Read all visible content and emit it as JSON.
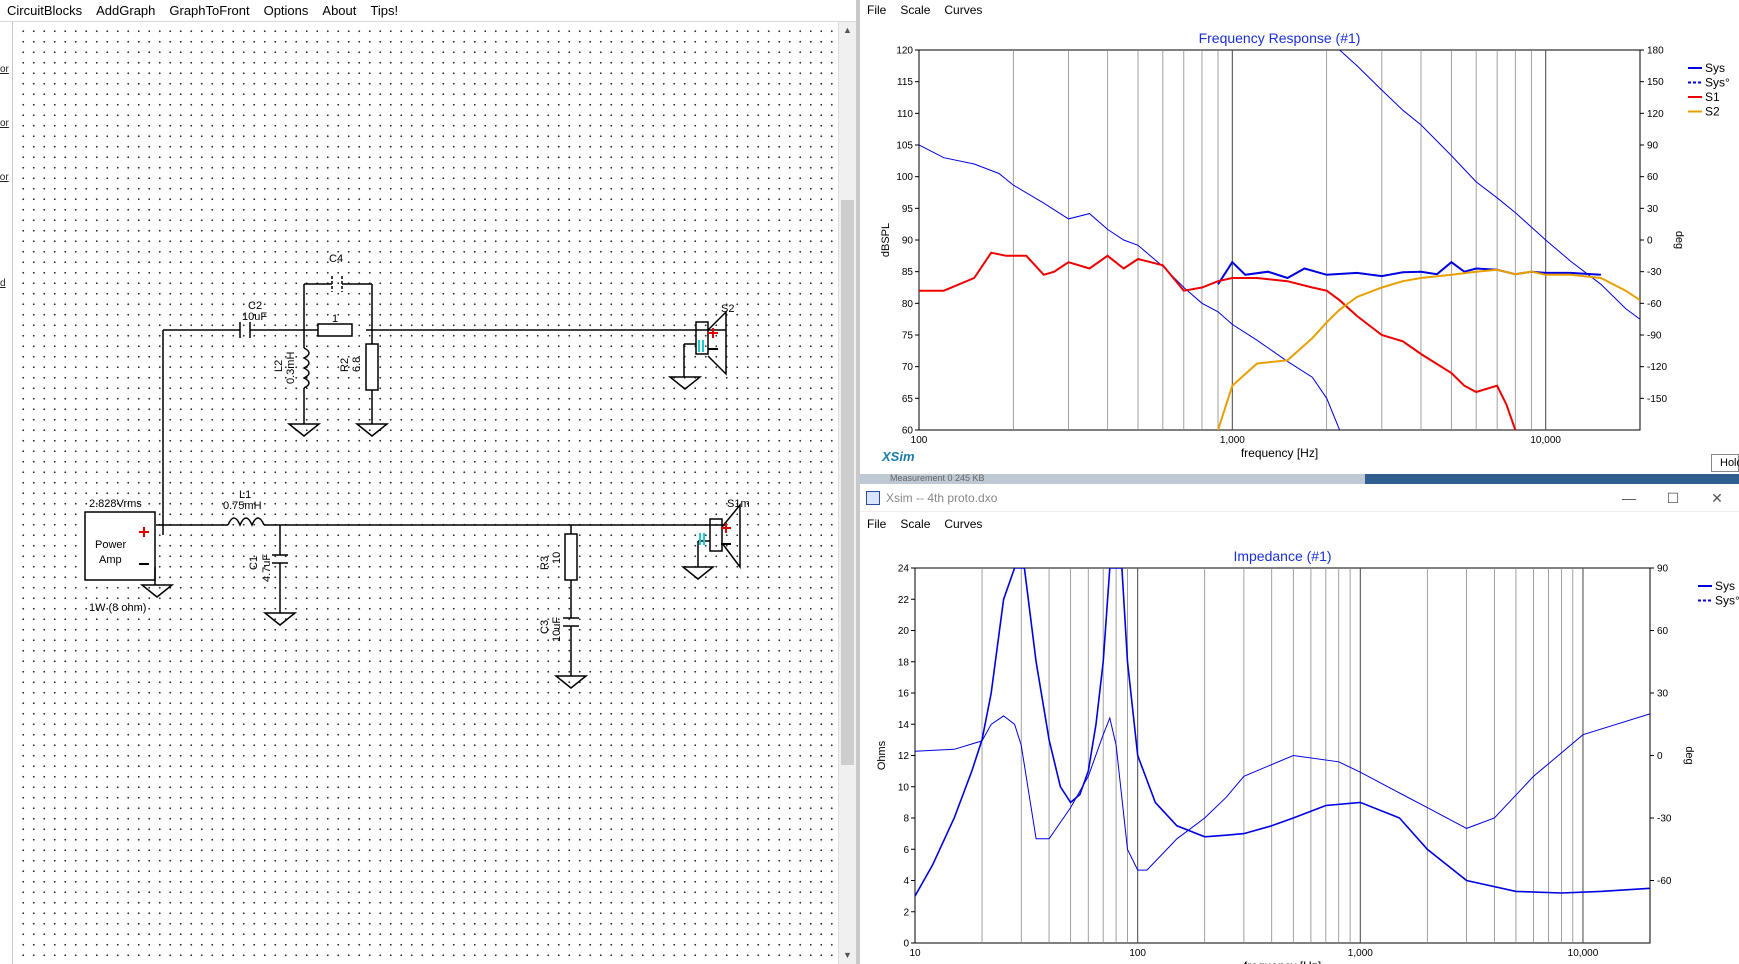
{
  "app_menu": [
    "CircuitBlocks",
    "AddGraph",
    "GraphToFront",
    "Options",
    "About",
    "Tips!"
  ],
  "sidebar_fragments": [
    "or",
    "or",
    "tor",
    "d"
  ],
  "schematic": {
    "components": {
      "C2": {
        "name": "C2",
        "value": "10uF"
      },
      "C4": {
        "name": "C4",
        "value": ""
      },
      "R_series": {
        "name": "",
        "value": "1"
      },
      "L2": {
        "name": "L2",
        "value": "0.3mH"
      },
      "R2": {
        "name": "R2",
        "value": "6.8"
      },
      "S2": {
        "name": "S2"
      },
      "L1": {
        "name": "L1",
        "value": "0.75mH"
      },
      "C1": {
        "name": "C1",
        "value": "4.7uF"
      },
      "R3": {
        "name": "R3",
        "value": "10"
      },
      "C3": {
        "name": "C3",
        "value": "10uF"
      },
      "S1m": {
        "name": "S1m"
      },
      "amp": {
        "voltage": "2.828Vrms",
        "label_line1": "Power",
        "label_line2": "Amp",
        "power": "1W (8 ohm)"
      }
    }
  },
  "freq_window": {
    "menu": [
      "File",
      "Scale",
      "Curves"
    ],
    "brand": "XSim",
    "hold_label": "Hold"
  },
  "mid_strip_text": "Measurement   0 245 KB",
  "imp_window": {
    "title": "Xsim -- 4th proto.dxo",
    "menu": [
      "File",
      "Scale",
      "Curves"
    ],
    "buttons": {
      "minimize": "—",
      "maximize": "☐",
      "close": "✕"
    }
  },
  "chart_data": [
    {
      "type": "line",
      "title": "Frequency Response (#1)",
      "xlabel": "frequency [Hz]",
      "ylabel": "dBSPL",
      "y2label": "deg",
      "xscale": "log",
      "xlim": [
        100,
        20000
      ],
      "ylim": [
        60,
        120
      ],
      "y2lim": [
        -180,
        180
      ],
      "x_ticks": [
        "100",
        "1,000",
        "10,000"
      ],
      "y_ticks": [
        "60",
        "65",
        "70",
        "75",
        "80",
        "85",
        "90",
        "95",
        "100",
        "105",
        "110",
        "115",
        "120"
      ],
      "y2_ticks": [
        "-150",
        "-120",
        "-90",
        "-60",
        "-30",
        "0",
        "30",
        "60",
        "90",
        "120",
        "150",
        "180"
      ],
      "legend": {
        "placement": "right",
        "entries": [
          "Sys",
          "Sys°",
          "S1",
          "S2"
        ]
      },
      "grid": true,
      "colors": {
        "Sys": "#0000e0",
        "S1": "#ee0000",
        "S2": "#e8a000"
      },
      "series": [
        {
          "name": "Sys",
          "axis": "left",
          "style": "solid",
          "x": [
            900,
            1000,
            1100,
            1300,
            1500,
            1700,
            2000,
            2500,
            3000,
            3500,
            4000,
            4500,
            5000,
            5500,
            6000,
            7000,
            8000,
            9000,
            10000,
            12000,
            15000
          ],
          "values": [
            83,
            86.5,
            84.5,
            85,
            84,
            85.5,
            84.5,
            84.8,
            84.3,
            84.9,
            85,
            84.6,
            86.5,
            85,
            85.5,
            85.3,
            84.6,
            85,
            84.8,
            84.8,
            84.5
          ]
        },
        {
          "name": "Sys°",
          "axis": "right",
          "style": "dashed",
          "x": [
            100,
            120,
            150,
            180,
            200,
            250,
            300,
            350,
            400,
            450,
            500,
            600,
            700,
            800,
            900,
            1000,
            1200,
            1500,
            1800,
            2000,
            2200
          ],
          "values": [
            90,
            78,
            72,
            63,
            52,
            35,
            20,
            25,
            10,
            0,
            -5,
            -25,
            -45,
            -60,
            -68,
            -80,
            -95,
            -115,
            -130,
            -150,
            -180
          ]
        },
        {
          "name": "Sys°",
          "axis": "right",
          "style": "dashed",
          "x": [
            2200,
            2500,
            3000,
            3500,
            4000,
            5000,
            6000,
            7000,
            8000,
            10000,
            12000,
            15000,
            18000,
            20000
          ],
          "values": [
            180,
            165,
            142,
            123,
            109,
            80,
            55,
            40,
            26,
            0,
            -20,
            -42,
            -65,
            -75
          ]
        },
        {
          "name": "S1",
          "axis": "left",
          "style": "solid",
          "x": [
            100,
            120,
            150,
            170,
            190,
            220,
            250,
            270,
            300,
            350,
            400,
            450,
            500,
            600,
            700,
            800,
            900,
            1000,
            1200,
            1500,
            1800,
            2000,
            2200,
            2500,
            3000,
            3500,
            4000,
            5000,
            5500,
            6000,
            7000,
            7500,
            8000
          ],
          "values": [
            82,
            82,
            84,
            88,
            87.5,
            87.5,
            84.5,
            85,
            86.5,
            85.5,
            87.5,
            85.5,
            87,
            86,
            82,
            82.5,
            83.5,
            84,
            84,
            83.5,
            82.5,
            82,
            80.5,
            78,
            75,
            74,
            72,
            69,
            67,
            66,
            67,
            64,
            60
          ]
        },
        {
          "name": "S2",
          "axis": "left",
          "style": "solid",
          "x": [
            900,
            1000,
            1200,
            1500,
            1800,
            2000,
            2200,
            2500,
            3000,
            3500,
            4000,
            5000,
            6000,
            7000,
            8000,
            9000,
            10000,
            12000,
            15000,
            18000,
            20000
          ],
          "values": [
            60,
            67,
            70.5,
            71,
            74.5,
            77,
            79,
            81,
            82.5,
            83.5,
            84,
            84.5,
            85,
            85.3,
            84.6,
            85,
            84.5,
            84.5,
            84,
            82,
            80.5
          ]
        }
      ]
    },
    {
      "type": "line",
      "title": "Impedance (#1)",
      "xlabel": "frequency [Hz]",
      "ylabel": "Ohms",
      "y2label": "deg",
      "xscale": "log",
      "xlim": [
        10,
        20000
      ],
      "ylim": [
        0,
        24
      ],
      "y2lim": [
        -90,
        90
      ],
      "x_ticks": [
        "10",
        "100",
        "1,000",
        "10,000"
      ],
      "y_ticks": [
        "0",
        "2",
        "4",
        "6",
        "8",
        "10",
        "12",
        "14",
        "16",
        "18",
        "20",
        "22",
        "24"
      ],
      "y2_ticks": [
        "-60",
        "-30",
        "0",
        "30",
        "60",
        "90"
      ],
      "legend": {
        "placement": "right",
        "entries": [
          "Sys",
          "Sys°"
        ]
      },
      "grid": true,
      "colors": {
        "Sys": "#0000e0"
      },
      "series": [
        {
          "name": "Sys",
          "axis": "left",
          "style": "solid",
          "x": [
            10,
            12,
            15,
            18,
            20,
            22,
            25,
            28,
            31,
            35,
            40,
            45,
            50,
            55,
            60,
            65,
            70,
            75,
            80,
            85,
            90,
            100,
            120,
            150,
            200,
            250,
            300,
            400,
            500,
            700,
            1000,
            1500,
            2000,
            3000,
            5000,
            8000,
            12000,
            20000
          ],
          "values": [
            3,
            5,
            8,
            11,
            13,
            16,
            22,
            24,
            24,
            18,
            13,
            10,
            9,
            9.5,
            11,
            14,
            18,
            24,
            24,
            24,
            18,
            12,
            9,
            7.5,
            6.8,
            6.9,
            7,
            7.5,
            8,
            8.8,
            9,
            8,
            6,
            4,
            3.3,
            3.2,
            3.3,
            3.5
          ]
        },
        {
          "name": "Sys°",
          "axis": "right",
          "style": "dashed",
          "x": [
            10,
            15,
            20,
            22,
            25,
            28,
            30,
            35,
            40,
            50,
            60,
            70,
            75,
            80,
            90,
            100,
            110,
            130,
            150,
            200,
            250,
            300,
            500,
            800,
            1000,
            1500,
            2000,
            3000,
            4000,
            6000,
            10000,
            20000
          ],
          "values": [
            2,
            3,
            7,
            15,
            19,
            15,
            5,
            -40,
            -40,
            -25,
            -10,
            10,
            18,
            5,
            -45,
            -55,
            -55,
            -47,
            -40,
            -30,
            -20,
            -10,
            0,
            -3,
            -8,
            -18,
            -25,
            -35,
            -30,
            -10,
            10,
            20
          ]
        }
      ]
    }
  ]
}
